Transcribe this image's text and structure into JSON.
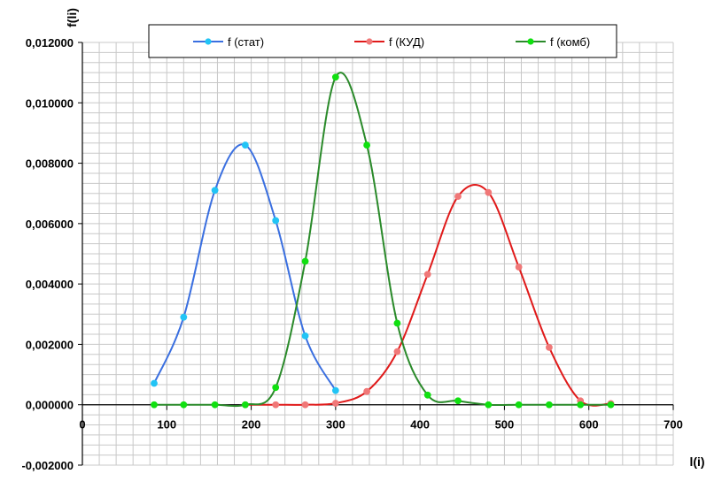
{
  "chart_data": {
    "type": "line",
    "title": "",
    "xlabel": "l(i)",
    "ylabel": "f(li)",
    "xlim": [
      0,
      700
    ],
    "ylim": [
      -0.002,
      0.012
    ],
    "x_ticks": [
      "0",
      "100",
      "200",
      "300",
      "400",
      "500",
      "600",
      "700"
    ],
    "y_ticks": [
      "-0,002000",
      "0,000000",
      "0,002000",
      "0,004000",
      "0,006000",
      "0,008000",
      "0,010000",
      "0,012000"
    ],
    "grid": true,
    "legend_position": "top",
    "series": [
      {
        "name": "f (стат)",
        "color": "#3a6fe0",
        "marker_color": "#22c4f5",
        "points": [
          [
            85,
            0.00071
          ],
          [
            120,
            0.0029
          ],
          [
            157,
            0.0071
          ],
          [
            193,
            0.0086
          ],
          [
            229,
            0.0061
          ],
          [
            264,
            0.00228
          ],
          [
            300,
            0.00047
          ]
        ]
      },
      {
        "name": "f (КУД)",
        "color": "#e01a1a",
        "marker_color": "#f07878",
        "points": [
          [
            193,
            0.0
          ],
          [
            229,
            0.0
          ],
          [
            264,
            0.0
          ],
          [
            300,
            5e-05
          ],
          [
            337,
            0.00044
          ],
          [
            373,
            0.00176
          ],
          [
            409,
            0.00432
          ],
          [
            445,
            0.0069
          ],
          [
            481,
            0.00703
          ],
          [
            517,
            0.00456
          ],
          [
            553,
            0.0019
          ],
          [
            590,
            0.00013
          ],
          [
            626,
            4e-05
          ]
        ]
      },
      {
        "name": "f (комб)",
        "color": "#2a8a2a",
        "marker_color": "#10e010",
        "points": [
          [
            85,
            0.0
          ],
          [
            120,
            0.0
          ],
          [
            157,
            0.0
          ],
          [
            193,
            0.0
          ],
          [
            229,
            0.00057
          ],
          [
            264,
            0.00475
          ],
          [
            300,
            0.01085
          ],
          [
            337,
            0.0086
          ],
          [
            373,
            0.0027
          ],
          [
            409,
            0.00032
          ],
          [
            445,
            0.00013
          ],
          [
            481,
            0.0
          ],
          [
            517,
            0.0
          ],
          [
            553,
            0.0
          ],
          [
            590,
            0.0
          ],
          [
            626,
            0.0
          ]
        ]
      }
    ]
  }
}
